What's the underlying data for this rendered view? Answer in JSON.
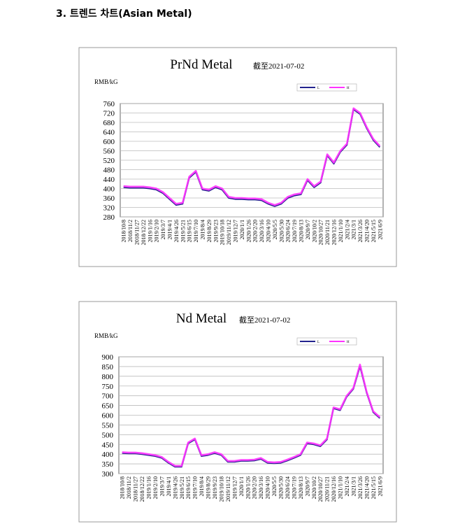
{
  "heading": "3. 트렌드 차트(Asian Metal)",
  "chart_data": [
    {
      "type": "line",
      "title": "PrNd Metal",
      "subtitle": "截至2021-07-02",
      "y_label": "RMB/kG",
      "categories": [
        "2018/10/8",
        "2018/11/2",
        "2018/11/27",
        "2018/12/22",
        "2019/1/16",
        "2019/2/10",
        "2019/3/7",
        "2019/4/1",
        "2019/4/26",
        "2019/5/21",
        "2019/6/15",
        "2019/7/10",
        "2019/8/4",
        "2019/8/29",
        "2019/9/23",
        "2019/10/18",
        "2019/11/12",
        "2019/12/7",
        "2020/1/1",
        "2020/1/26",
        "2020/2/20",
        "2020/3/16",
        "2020/4/10",
        "2020/5/5",
        "2020/5/30",
        "2020/6/24",
        "2020/7/19",
        "2020/8/13",
        "2020/9/7",
        "2020/10/2",
        "2020/10/27",
        "2020/11/21",
        "2020/12/16",
        "2021/1/10",
        "2021/2/4",
        "2021/3/1",
        "2021/3/26",
        "2021/4/20",
        "2021/5/15",
        "2021/6/9"
      ],
      "series": [
        {
          "name": "L",
          "color": "#23238e",
          "values": [
            405,
            403,
            403,
            403,
            400,
            395,
            380,
            355,
            330,
            335,
            445,
            470,
            395,
            390,
            405,
            395,
            360,
            355,
            355,
            353,
            353,
            350,
            335,
            325,
            335,
            360,
            370,
            375,
            435,
            405,
            425,
            540,
            505,
            555,
            585,
            735,
            715,
            655,
            605,
            575
          ]
        },
        {
          "name": "H",
          "color": "#ff33ff",
          "values": [
            410,
            408,
            408,
            408,
            405,
            400,
            385,
            360,
            335,
            340,
            450,
            475,
            400,
            395,
            410,
            400,
            365,
            360,
            360,
            358,
            358,
            355,
            340,
            330,
            340,
            365,
            375,
            380,
            440,
            410,
            430,
            545,
            510,
            560,
            590,
            740,
            720,
            660,
            610,
            580
          ]
        }
      ],
      "ylim": [
        280,
        760
      ],
      "yticks": [
        280,
        320,
        360,
        400,
        440,
        480,
        520,
        560,
        600,
        640,
        680,
        720,
        760
      ],
      "grid": true
    },
    {
      "type": "line",
      "title": "Nd Metal",
      "subtitle": "截至2021-07-02",
      "y_label": "RMB/kG",
      "categories": [
        "2018/10/8",
        "2018/11/2",
        "2018/11/27",
        "2018/12/22",
        "2019/1/16",
        "2019/2/10",
        "2019/3/7",
        "2019/4/1",
        "2019/4/26",
        "2019/5/21",
        "2019/6/15",
        "2019/7/10",
        "2019/8/4",
        "2019/8/29",
        "2019/9/23",
        "2019/10/18",
        "2019/11/12",
        "2019/12/7",
        "2020/1/1",
        "2020/1/26",
        "2020/2/20",
        "2020/3/16",
        "2020/4/10",
        "2020/5/5",
        "2020/5/30",
        "2020/6/24",
        "2020/7/19",
        "2020/8/13",
        "2020/9/7",
        "2020/10/2",
        "2020/10/27",
        "2020/11/21",
        "2020/12/16",
        "2021/1/10",
        "2021/2/4",
        "2021/3/1",
        "2021/3/26",
        "2021/4/20",
        "2021/5/15",
        "2021/6/9"
      ],
      "series": [
        {
          "name": "L",
          "color": "#23238e",
          "values": [
            405,
            403,
            403,
            400,
            395,
            390,
            380,
            355,
            335,
            335,
            455,
            475,
            390,
            395,
            405,
            395,
            360,
            360,
            365,
            365,
            367,
            375,
            355,
            353,
            355,
            367,
            380,
            395,
            455,
            450,
            440,
            475,
            635,
            625,
            695,
            735,
            850,
            715,
            615,
            585
          ]
        },
        {
          "name": "H",
          "color": "#ff33ff",
          "values": [
            410,
            408,
            408,
            405,
            400,
            395,
            385,
            360,
            340,
            340,
            460,
            480,
            395,
            400,
            410,
            400,
            365,
            365,
            370,
            370,
            372,
            380,
            360,
            358,
            360,
            372,
            385,
            400,
            460,
            455,
            445,
            480,
            640,
            630,
            700,
            740,
            860,
            720,
            620,
            590
          ]
        }
      ],
      "ylim": [
        300,
        900
      ],
      "yticks": [
        300,
        350,
        400,
        450,
        500,
        550,
        600,
        650,
        700,
        750,
        800,
        850,
        900
      ],
      "grid": true
    }
  ]
}
